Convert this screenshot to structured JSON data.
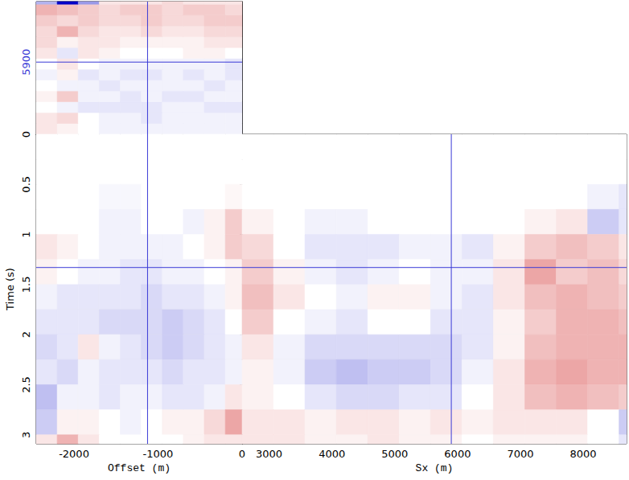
{
  "chart_data": [
    {
      "type": "heatmap",
      "x": [
        -2325,
        -2075,
        -1825,
        -1575,
        -1325,
        -1075,
        -825,
        -575,
        -325,
        -75
      ],
      "y": [
        2820,
        3320,
        3820,
        4320,
        4820,
        5320,
        5820,
        6320,
        6820,
        7320,
        7820,
        8320,
        8820
      ],
      "values": [
        [
          0.1,
          0.05,
          0,
          -0.05,
          -0.05,
          -0.05,
          -0.05,
          -0.05,
          -0.05,
          -0.05
        ],
        [
          0.1,
          0.15,
          0,
          -0.05,
          -0.05,
          -0.1,
          -0.05,
          -0.05,
          -0.05,
          -0.05
        ],
        [
          0,
          -0.05,
          -0.1,
          -0.1,
          -0.1,
          -0.1,
          -0.05,
          -0.05,
          -0.1,
          -0.1
        ],
        [
          0.05,
          0.2,
          -0.05,
          -0.05,
          -0.1,
          -0.05,
          -0.1,
          -0.1,
          -0.05,
          -0.05
        ],
        [
          0,
          -0.05,
          -0.05,
          -0.1,
          -0.05,
          -0.05,
          -0.05,
          -0.05,
          -0.1,
          -0.05
        ],
        [
          -0.05,
          0.05,
          -0.1,
          -0.05,
          -0.1,
          -0.1,
          -0.05,
          -0.1,
          -0.05,
          -0.1
        ],
        [
          0,
          0.1,
          0,
          -0.05,
          -0.05,
          -0.05,
          -0.05,
          -0.05,
          -0.05,
          -0.1
        ],
        [
          0.1,
          -0.1,
          0.1,
          0.05,
          0,
          0,
          0,
          0.05,
          0.05,
          0
        ],
        [
          0.15,
          0.05,
          0.1,
          0.1,
          0.05,
          0.05,
          0.05,
          0.05,
          0.1,
          0.1
        ],
        [
          0.15,
          0.3,
          0.15,
          0.1,
          0.1,
          0.15,
          0.1,
          0.1,
          0.15,
          0.15
        ],
        [
          0.2,
          0.15,
          0.2,
          0.15,
          0.15,
          0.2,
          0.15,
          0.15,
          0.2,
          0.2
        ],
        [
          0.3,
          0.25,
          0.2,
          0.15,
          0.2,
          0.2,
          0.15,
          0.2,
          0.2,
          0.15
        ],
        [
          -0.3,
          -1,
          -0.4,
          0.1,
          0.1,
          0.1,
          0.15,
          0.1,
          0.1,
          0.1
        ]
      ],
      "clim": [
        -1,
        1
      ],
      "xlim": [
        -2450,
        0
      ],
      "ylim": [
        2570,
        8690
      ],
      "yticks": [
        5900
      ],
      "tick_labels": "y",
      "crosshair": {
        "x": -1125,
        "y": 5900
      }
    },
    {
      "type": "heatmap",
      "xlabel": "Offset (m)",
      "ylabel": "Time (s)",
      "x": [
        -2325,
        -2075,
        -1825,
        -1575,
        -1325,
        -1075,
        -825,
        -575,
        -325,
        -75
      ],
      "y": [
        0.125,
        0.375,
        0.625,
        0.875,
        1.125,
        1.375,
        1.625,
        1.875,
        2.125,
        2.375,
        2.625,
        2.875,
        3.125
      ],
      "values": [
        [
          0,
          0,
          0,
          0,
          0,
          0,
          0,
          0,
          0,
          0
        ],
        [
          0,
          0,
          0,
          0,
          0,
          0,
          0,
          0,
          0,
          0
        ],
        [
          0,
          0,
          0,
          -0.03,
          -0.03,
          0,
          0,
          0,
          0,
          0.03
        ],
        [
          0,
          0,
          0,
          -0.05,
          -0.05,
          0,
          0,
          -0.05,
          0.05,
          0.2
        ],
        [
          0.1,
          0.05,
          0,
          -0.05,
          -0.05,
          -0.05,
          -0.05,
          0,
          0.05,
          0.2
        ],
        [
          0.05,
          0,
          -0.05,
          -0.05,
          -0.1,
          -0.1,
          -0.05,
          -0.05,
          0,
          0.05
        ],
        [
          -0.05,
          -0.1,
          -0.1,
          -0.1,
          -0.1,
          -0.15,
          -0.1,
          -0.1,
          -0.05,
          0.05
        ],
        [
          -0.1,
          -0.1,
          -0.1,
          -0.15,
          -0.15,
          -0.15,
          -0.2,
          -0.15,
          -0.1,
          0
        ],
        [
          -0.15,
          -0.1,
          0.1,
          -0.05,
          -0.1,
          -0.15,
          -0.2,
          -0.15,
          -0.1,
          -0.05
        ],
        [
          -0.1,
          -0.15,
          -0.05,
          -0.1,
          -0.1,
          -0.1,
          -0.15,
          -0.1,
          -0.1,
          -0.05
        ],
        [
          -0.25,
          -0.05,
          -0.05,
          -0.1,
          -0.05,
          -0.05,
          -0.1,
          -0.1,
          -0.05,
          0.1
        ],
        [
          -0.2,
          0.05,
          0.05,
          0,
          -0.05,
          0,
          0.05,
          0.05,
          0.15,
          0.35
        ],
        [
          0.1,
          0.3,
          0.1,
          0,
          0,
          0,
          0,
          0.05,
          0.1,
          0.1
        ]
      ],
      "clim": [
        -1,
        1
      ],
      "xlim": [
        -2450,
        0
      ],
      "ylim": [
        3.09,
        0
      ],
      "xticks": [
        -2000,
        -1000,
        0
      ],
      "yticks": [
        0,
        0.5,
        1,
        1.5,
        2,
        2.5,
        3
      ],
      "crosshair": {
        "x": -1125,
        "y": 1.33
      }
    },
    {
      "type": "heatmap",
      "xlabel": "Sx (m)",
      "x": [
        2820,
        3320,
        3820,
        4320,
        4820,
        5320,
        5820,
        6320,
        6820,
        7320,
        7820,
        8320,
        8820
      ],
      "y": [
        0.125,
        0.375,
        0.625,
        0.875,
        1.125,
        1.375,
        1.625,
        1.875,
        2.125,
        2.375,
        2.625,
        2.875,
        3.125
      ],
      "values": [
        [
          0,
          0,
          0,
          0,
          0,
          0,
          0,
          0,
          0,
          0,
          0,
          0,
          0
        ],
        [
          0,
          0,
          0,
          0,
          0,
          0,
          0,
          0,
          0,
          0,
          0,
          0,
          0
        ],
        [
          0,
          0,
          0,
          0,
          0,
          0,
          0,
          0,
          0,
          0,
          0,
          -0.05,
          -0.1
        ],
        [
          0.05,
          0,
          -0.05,
          -0.05,
          0,
          0,
          0,
          0,
          0,
          0.05,
          0.1,
          -0.2,
          -0.1
        ],
        [
          0.15,
          0,
          -0.1,
          -0.1,
          -0.1,
          -0.05,
          -0.05,
          -0.1,
          0.05,
          0.2,
          0.25,
          0.2,
          0.1
        ],
        [
          0.2,
          0.05,
          -0.05,
          -0.1,
          -0.05,
          0,
          -0.05,
          -0.05,
          0.1,
          0.35,
          0.2,
          0.25,
          0.15
        ],
        [
          0.25,
          0.1,
          0,
          -0.05,
          0.05,
          0.05,
          -0.05,
          -0.1,
          0.1,
          0.25,
          0.3,
          0.25,
          0.2
        ],
        [
          0.2,
          0,
          -0.05,
          -0.1,
          0,
          0,
          -0.1,
          -0.1,
          0.05,
          0.2,
          0.3,
          0.3,
          0.25
        ],
        [
          0.1,
          -0.05,
          -0.15,
          -0.15,
          -0.15,
          -0.15,
          -0.15,
          -0.1,
          0.05,
          0.25,
          0.3,
          0.3,
          0.3
        ],
        [
          0.05,
          -0.05,
          -0.2,
          -0.25,
          -0.2,
          -0.2,
          -0.15,
          -0.05,
          0.1,
          0.3,
          0.35,
          0.3,
          0.3
        ],
        [
          0.05,
          0,
          -0.1,
          -0.15,
          -0.15,
          -0.1,
          -0.1,
          0,
          0.1,
          0.25,
          0.3,
          0.25,
          0.2
        ],
        [
          0.1,
          0.1,
          0.05,
          0.1,
          0.1,
          0.05,
          0.1,
          0.05,
          0.1,
          0.1,
          0.1,
          0,
          -0.2
        ],
        [
          0.1,
          0.1,
          0.05,
          0.05,
          0.1,
          0.05,
          0.05,
          0,
          0.05,
          0.05,
          0.05,
          0,
          -0.1
        ]
      ],
      "clim": [
        -1,
        1
      ],
      "xlim": [
        2570,
        8690
      ],
      "ylim": [
        3.09,
        0
      ],
      "xticks": [
        3000,
        4000,
        5000,
        6000,
        7000,
        8000
      ],
      "tick_labels": "x",
      "crosshair": {
        "x": 5900,
        "y": 1.33
      }
    }
  ]
}
